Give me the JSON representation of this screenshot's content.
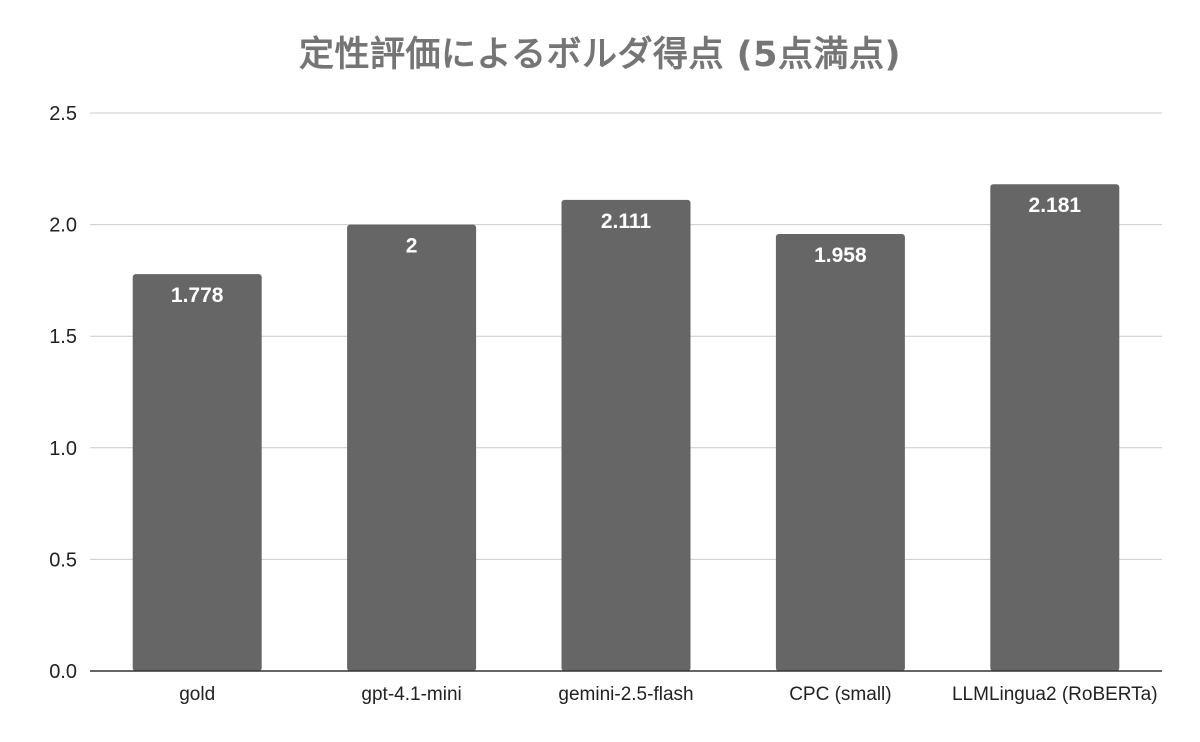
{
  "chart_data": {
    "type": "bar",
    "title": "定性評価によるボルダ得点 (5点満点)",
    "xlabel": "",
    "ylabel": "",
    "categories": [
      "gold",
      "gpt-4.1-mini",
      "gemini-2.5-flash",
      "CPC (small)",
      "LLMLingua2 (RoBERTa)"
    ],
    "values": [
      1.778,
      2,
      2.111,
      1.958,
      2.181
    ],
    "data_labels": [
      "1.778",
      "2",
      "2.111",
      "1.958",
      "2.181"
    ],
    "ylim": [
      0,
      2.5
    ],
    "yticks": [
      "0.0",
      "0.5",
      "1.0",
      "1.5",
      "2.0",
      "2.5"
    ],
    "grid": true,
    "legend": "none",
    "colors": {
      "bar": "#666666",
      "title": "#757575",
      "grid": "#cccccc",
      "axis": "#333333",
      "data_label": "#ffffff"
    }
  }
}
